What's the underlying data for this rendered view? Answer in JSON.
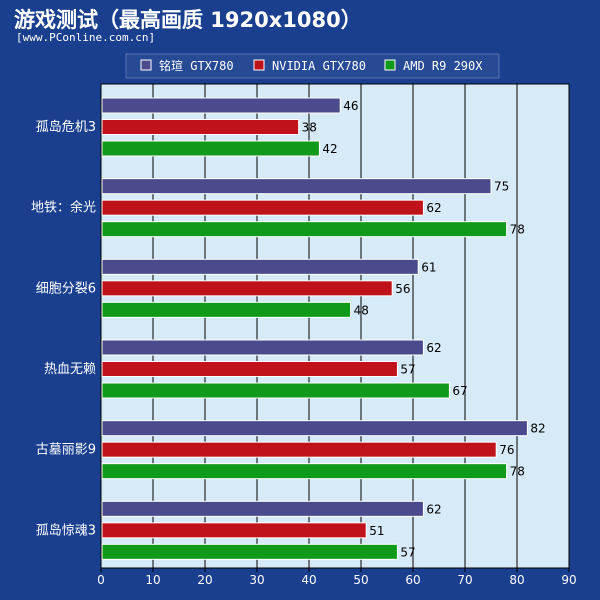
{
  "title": "游戏测试（最高画质 1920x1080）",
  "source": "[www.PConline.com.cn]",
  "colors": {
    "background": "#1a3f8f",
    "plot_background": "#d6eaf8",
    "gridline": "#000000",
    "label_text": "#ffffff",
    "value_text": "#000000"
  },
  "chart_data": {
    "type": "bar",
    "orientation": "horizontal",
    "title": "游戏测试（最高画质 1920x1080）",
    "categories": [
      "孤岛危机3",
      "地铁：余光",
      "细胞分裂6",
      "热血无赖",
      "古墓丽影9",
      "孤岛惊魂3"
    ],
    "series": [
      {
        "name": "铭瑄 GTX780",
        "color": "#4a4a8c",
        "values": [
          46,
          75,
          61,
          62,
          82,
          62
        ]
      },
      {
        "name": "NVIDIA GTX780",
        "color": "#c0121a",
        "values": [
          38,
          62,
          56,
          57,
          76,
          51
        ]
      },
      {
        "name": "AMD R9 290X",
        "color": "#0f9a1a",
        "values": [
          42,
          78,
          48,
          67,
          78,
          57
        ]
      }
    ],
    "xlim": [
      0,
      90
    ],
    "xticks": [
      0,
      10,
      20,
      30,
      40,
      50,
      60,
      70,
      80,
      90
    ],
    "grid": true,
    "legend": "top"
  }
}
